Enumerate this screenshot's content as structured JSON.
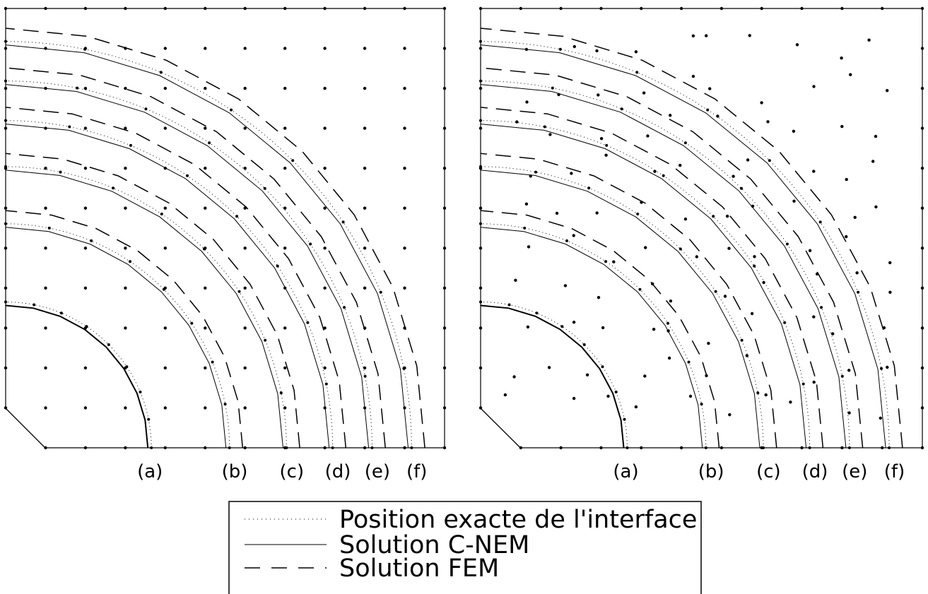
{
  "panels": [
    {
      "id": "regular",
      "interface_labels": [
        "(a)",
        "(b)",
        "(c)",
        "(d)",
        "(e)",
        "(f)"
      ]
    },
    {
      "id": "irregular",
      "interface_labels": [
        "(a)",
        "(b)",
        "(c)",
        "(d)",
        "(e)",
        "(f)"
      ]
    }
  ],
  "legend": {
    "items": [
      {
        "label": "Position exacte de l'interface",
        "style": "dotted"
      },
      {
        "label": "Solution C-NEM",
        "style": "solid"
      },
      {
        "label": "Solution FEM",
        "style": "dashed"
      }
    ]
  },
  "colors": {
    "line": "#000000",
    "background": "#ffffff"
  }
}
